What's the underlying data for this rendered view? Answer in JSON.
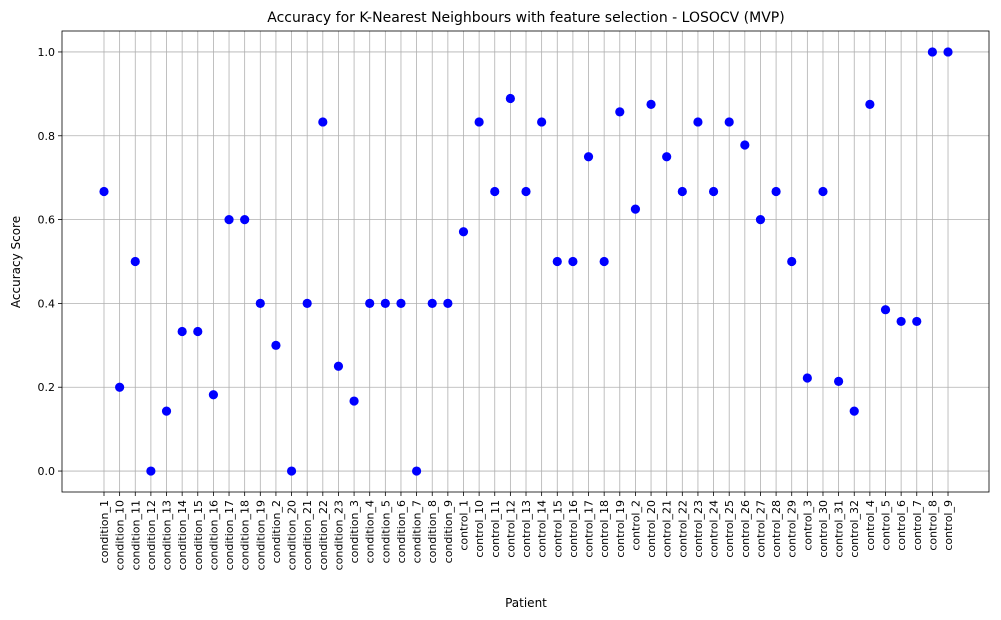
{
  "chart_data": {
    "type": "scatter",
    "title": "Accuracy for K-Nearest Neighbours with feature selection - LOSOCV (MVP)",
    "xlabel": "Patient",
    "ylabel": "Accuracy Score",
    "ylim": [
      -0.05,
      1.05
    ],
    "yticks": [
      "0.0",
      "0.2",
      "0.4",
      "0.6",
      "0.8",
      "1.0"
    ],
    "grid": true,
    "marker_color": "#0000ff",
    "categories": [
      "condition_1",
      "condition_10",
      "condition_11",
      "condition_12",
      "condition_13",
      "condition_14",
      "condition_15",
      "condition_16",
      "condition_17",
      "condition_18",
      "condition_19",
      "condition_2",
      "condition_20",
      "condition_21",
      "condition_22",
      "condition_23",
      "condition_3",
      "condition_4",
      "condition_5",
      "condition_6",
      "condition_7",
      "condition_8",
      "condition_9",
      "control_1",
      "control_10",
      "control_11",
      "control_12",
      "control_13",
      "control_14",
      "control_15",
      "control_16",
      "control_17",
      "control_18",
      "control_19",
      "control_2",
      "control_20",
      "control_21",
      "control_22",
      "control_23",
      "control_24",
      "control_25",
      "control_26",
      "control_27",
      "control_28",
      "control_29",
      "control_3",
      "control_30",
      "control_31",
      "control_32",
      "control_4",
      "control_5",
      "control_6",
      "control_7",
      "control_8",
      "control_9"
    ],
    "values": [
      0.667,
      0.2,
      0.5,
      0.0,
      0.143,
      0.333,
      0.333,
      0.182,
      0.6,
      0.6,
      0.4,
      0.3,
      0.0,
      0.4,
      0.833,
      0.25,
      0.167,
      0.4,
      0.4,
      0.4,
      0.0,
      0.4,
      0.4,
      0.571,
      0.833,
      0.667,
      0.889,
      0.667,
      0.833,
      0.5,
      0.5,
      0.75,
      0.5,
      0.857,
      0.625,
      0.875,
      0.75,
      0.667,
      0.833,
      0.667,
      0.833,
      0.778,
      0.6,
      0.667,
      0.5,
      0.222,
      0.667,
      0.214,
      0.143,
      0.875,
      0.385,
      0.357,
      0.357,
      1.0,
      1.0
    ]
  }
}
